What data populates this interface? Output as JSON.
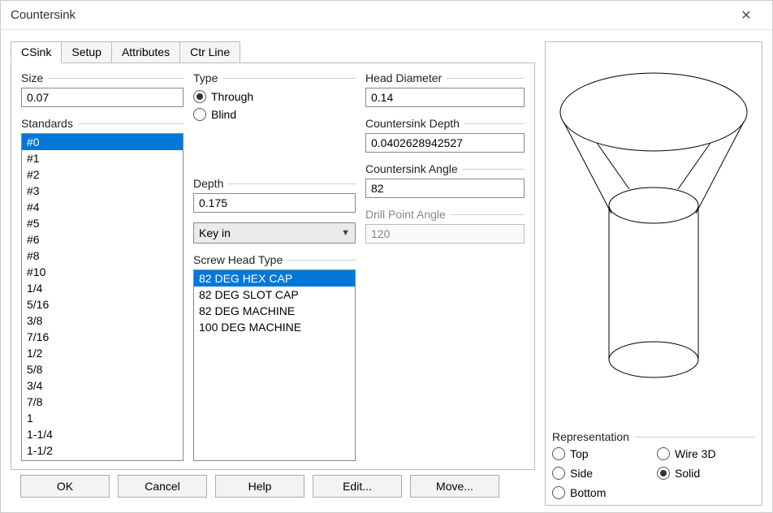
{
  "window": {
    "title": "Countersink"
  },
  "tabs": [
    "CSink",
    "Setup",
    "Attributes",
    "Ctr Line"
  ],
  "active_tab": 0,
  "size": {
    "label": "Size",
    "value": "0.07"
  },
  "standards": {
    "label": "Standards",
    "items": [
      "#0",
      "#1",
      "#2",
      "#3",
      "#4",
      "#5",
      "#6",
      "#8",
      "#10",
      "1/4",
      "5/16",
      "3/8",
      "7/16",
      "1/2",
      "5/8",
      "3/4",
      "7/8",
      "1",
      "1-1/4",
      "1-1/2"
    ],
    "selected": 0
  },
  "type": {
    "label": "Type",
    "options": [
      {
        "label": "Through",
        "checked": true
      },
      {
        "label": "Blind",
        "checked": false
      }
    ]
  },
  "depth": {
    "label": "Depth",
    "value": "0.175"
  },
  "depth_mode": {
    "label": "Key in"
  },
  "screw_head_type": {
    "label": "Screw Head Type",
    "items": [
      "82 DEG HEX CAP",
      "82 DEG SLOT CAP",
      "82 DEG MACHINE",
      "100 DEG MACHINE"
    ],
    "selected": 0
  },
  "head_diameter": {
    "label": "Head Diameter",
    "value": "0.14"
  },
  "countersink_depth": {
    "label": "Countersink Depth",
    "value": "0.0402628942527"
  },
  "countersink_angle": {
    "label": "Countersink Angle",
    "value": "82"
  },
  "drill_point_angle": {
    "label": "Drill Point Angle",
    "value": "120",
    "disabled": true
  },
  "representation": {
    "label": "Representation",
    "options": [
      {
        "label": "Top",
        "checked": false
      },
      {
        "label": "Wire 3D",
        "checked": false
      },
      {
        "label": "Side",
        "checked": false
      },
      {
        "label": "Solid",
        "checked": true
      },
      {
        "label": "Bottom",
        "checked": false
      }
    ]
  },
  "buttons": {
    "ok": "OK",
    "cancel": "Cancel",
    "help": "Help",
    "edit": "Edit...",
    "move": "Move..."
  },
  "preview_svg": {
    "stroke": "#000000",
    "stroke_width": 1,
    "fill": "none"
  }
}
